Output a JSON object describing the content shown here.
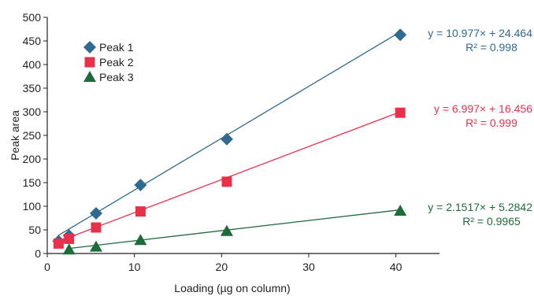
{
  "chart_data": {
    "type": "scatter",
    "title": "",
    "xlabel": "Loading (µg on column)",
    "ylabel": "Peak area",
    "xlim": [
      0,
      45
    ],
    "ylim": [
      0,
      500
    ],
    "xticks": [
      0,
      10,
      20,
      30,
      40
    ],
    "yticks": [
      0,
      50,
      100,
      150,
      200,
      250,
      300,
      350,
      400,
      450,
      500
    ],
    "grid": false,
    "legend_position": "top-left",
    "series": [
      {
        "name": "Peak 1",
        "marker": "diamond",
        "color": "#2e6a92",
        "points": [
          [
            1.3,
            26
          ],
          [
            2.5,
            38
          ],
          [
            5.6,
            85
          ],
          [
            10.7,
            145
          ],
          [
            20.6,
            242
          ],
          [
            40.5,
            463
          ]
        ],
        "fit": {
          "slope": 10.977,
          "intercept": 24.464
        },
        "equation": "y = 10.977× + 24.464",
        "r2": "R² = 0.998"
      },
      {
        "name": "Peak 2",
        "marker": "square",
        "color": "#e8304a",
        "points": [
          [
            1.3,
            21
          ],
          [
            2.5,
            31
          ],
          [
            5.6,
            55
          ],
          [
            10.7,
            89
          ],
          [
            20.6,
            152
          ],
          [
            40.5,
            298
          ]
        ],
        "fit": {
          "slope": 6.997,
          "intercept": 16.456
        },
        "equation": "y = 6.997× + 16.456",
        "r2": "R² = 0.999"
      },
      {
        "name": "Peak 3",
        "marker": "triangle",
        "color": "#1e6b3a",
        "points": [
          [
            2.5,
            8
          ],
          [
            5.6,
            14
          ],
          [
            10.7,
            28
          ],
          [
            20.6,
            47
          ],
          [
            40.5,
            90
          ]
        ],
        "fit": {
          "slope": 2.1517,
          "intercept": 5.2842
        },
        "equation": "y = 2.1517× + 5.2842",
        "r2": "R² = 0.9965"
      }
    ]
  }
}
